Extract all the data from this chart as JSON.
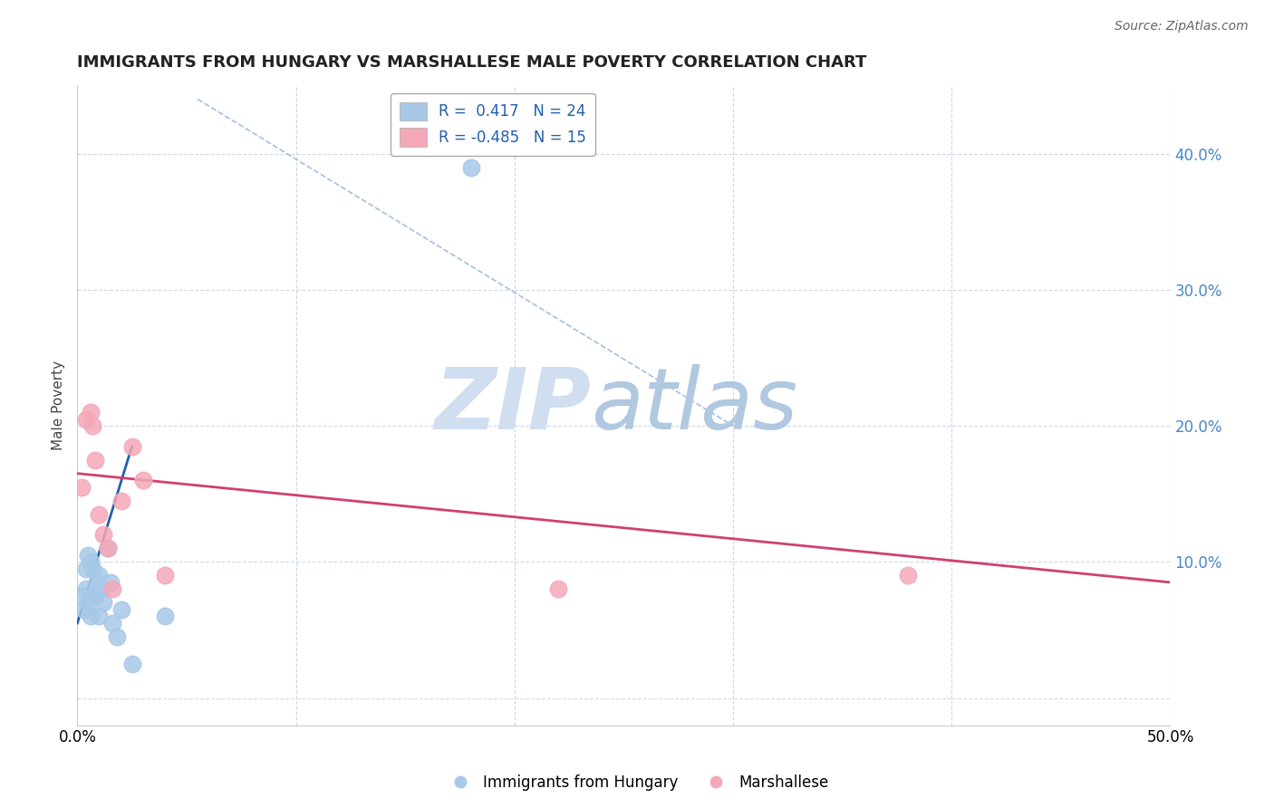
{
  "title": "IMMIGRANTS FROM HUNGARY VS MARSHALLESE MALE POVERTY CORRELATION CHART",
  "source": "Source: ZipAtlas.com",
  "ylabel": "Male Poverty",
  "xlim": [
    0.0,
    0.5
  ],
  "ylim": [
    -0.02,
    0.45
  ],
  "xticks": [
    0.0,
    0.1,
    0.2,
    0.3,
    0.4,
    0.5
  ],
  "yticks": [
    0.0,
    0.1,
    0.2,
    0.3,
    0.4
  ],
  "r1": 0.417,
  "n1": 24,
  "r2": -0.485,
  "n2": 15,
  "blue_color": "#a8c8e8",
  "pink_color": "#f4a8b8",
  "blue_line_color": "#2060b0",
  "pink_line_color": "#d04070",
  "grid_color": "#d0d8e8",
  "title_color": "#222222",
  "source_color": "#666666",
  "legend_text_color": "#2060b0",
  "right_axis_color": "#4488cc",
  "watermark_zip_color": "#d0dff0",
  "watermark_atlas_color": "#b0c8e0",
  "blue_scatter_x": [
    0.002,
    0.003,
    0.004,
    0.004,
    0.005,
    0.005,
    0.006,
    0.006,
    0.007,
    0.007,
    0.008,
    0.009,
    0.01,
    0.01,
    0.011,
    0.012,
    0.014,
    0.015,
    0.016,
    0.018,
    0.02,
    0.025,
    0.04,
    0.18
  ],
  "blue_scatter_y": [
    0.075,
    0.065,
    0.08,
    0.095,
    0.07,
    0.105,
    0.06,
    0.1,
    0.075,
    0.095,
    0.075,
    0.085,
    0.06,
    0.09,
    0.08,
    0.07,
    0.11,
    0.085,
    0.055,
    0.045,
    0.065,
    0.025,
    0.06,
    0.39
  ],
  "pink_scatter_x": [
    0.002,
    0.004,
    0.006,
    0.007,
    0.008,
    0.01,
    0.012,
    0.014,
    0.016,
    0.02,
    0.025,
    0.03,
    0.04,
    0.22,
    0.38
  ],
  "pink_scatter_y": [
    0.155,
    0.205,
    0.21,
    0.2,
    0.175,
    0.135,
    0.12,
    0.11,
    0.08,
    0.145,
    0.185,
    0.16,
    0.09,
    0.08,
    0.09
  ],
  "blue_line_x0": 0.0,
  "blue_line_y0": 0.055,
  "blue_line_x1": 0.025,
  "blue_line_y1": 0.185,
  "pink_line_x0": 0.0,
  "pink_line_y0": 0.165,
  "pink_line_x1": 0.5,
  "pink_line_y1": 0.085,
  "dash_line_x0": 0.055,
  "dash_line_y0": 0.44,
  "dash_line_x1": 0.3,
  "dash_line_y1": 0.2
}
